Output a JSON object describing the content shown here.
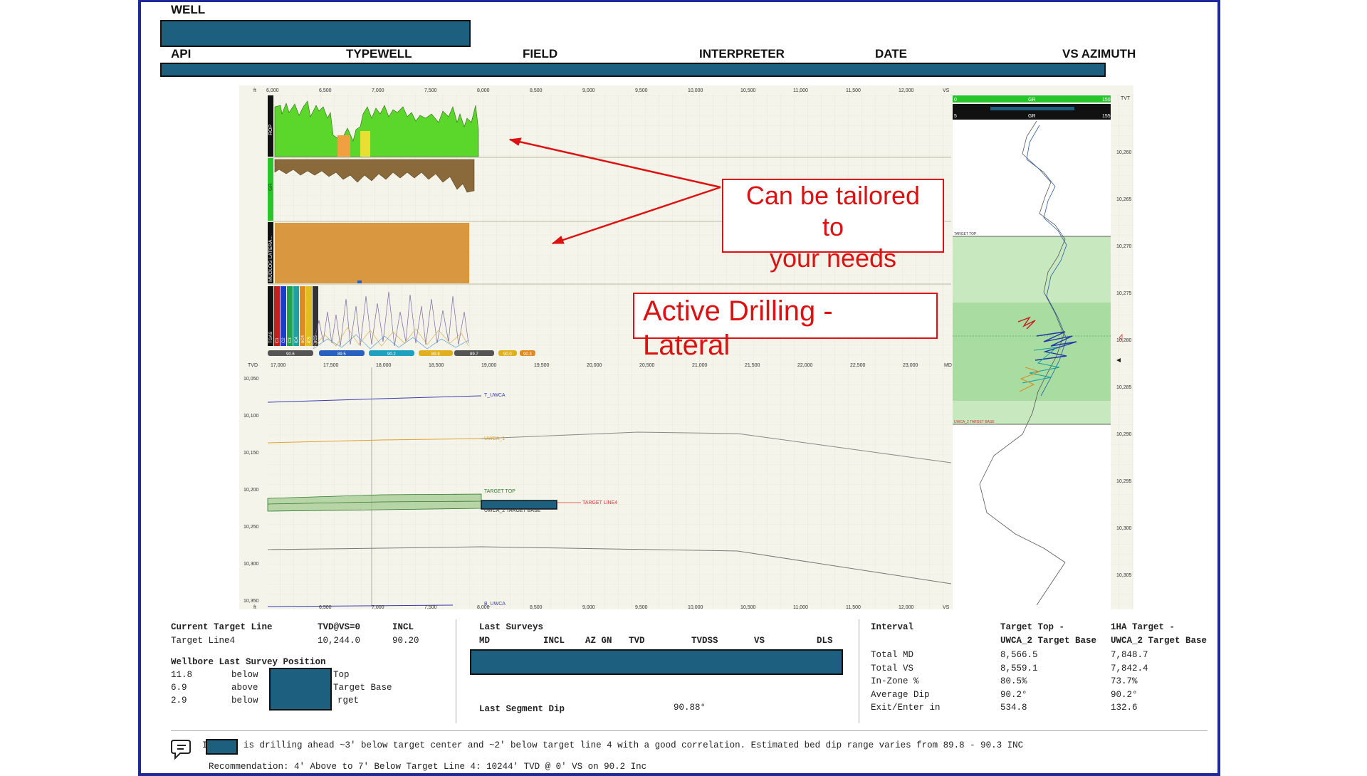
{
  "header": {
    "labels": [
      "WELL",
      "API",
      "TYPEWELL",
      "FIELD",
      "INTERPRETER",
      "DATE",
      "VS AZIMUTH"
    ]
  },
  "plot": {
    "unit_left": "ft",
    "unit_right": "VS",
    "md_unit": "MD",
    "tvd_unit": "TVD",
    "tvt_unit": "TVT",
    "top_ticks": [
      "6,000",
      "6,500",
      "7,000",
      "7,500",
      "8,000",
      "8,500",
      "9,000",
      "9,500",
      "10,000",
      "10,500",
      "11,000",
      "11,500",
      "12,000"
    ],
    "md_ticks": [
      "17,000",
      "17,500",
      "18,000",
      "18,500",
      "19,000",
      "19,500",
      "20,000",
      "20,500",
      "21,000",
      "21,500",
      "22,000",
      "22,500",
      "23,000"
    ],
    "bottom_ticks": [
      "6,500",
      "7,000",
      "7,500",
      "8,000",
      "8,500",
      "9,000",
      "9,500",
      "10,000",
      "10,500",
      "11,000",
      "11,500",
      "12,000"
    ],
    "tvd_ticks": [
      "10,050",
      "10,100",
      "10,150",
      "10,200",
      "10,250",
      "10,300",
      "10,350"
    ],
    "tvt_ticks": [
      "10,260",
      "10,265",
      "10,270",
      "10,275",
      "10,280",
      "10,285",
      "10,290",
      "10,295",
      "10,300",
      "10,305"
    ],
    "track_labels": [
      "ROP",
      "GR",
      "MUDLOG LATERA..."
    ],
    "gas_labels": [
      "TGAS",
      "C1",
      "C2",
      "C3",
      "iC4",
      "nC4",
      "iC5",
      "nC5"
    ],
    "inc_badges": [
      "90.6",
      "89.5",
      "90.2",
      "89.8",
      "89.7",
      "90.0",
      "90.3"
    ],
    "horizon_labels": [
      "T_UWCA",
      "UWCA_1",
      "TARGET TOP",
      "UWCA_2 TARGET BASE",
      "TARGET LINE4",
      "B_UWCA"
    ],
    "gr_header": [
      "GR",
      "GR"
    ],
    "gr_scale": [
      "0",
      "150",
      "5",
      "155"
    ],
    "type_labels": [
      "TARGET TOP",
      "UWCA_2 TARGET BASE"
    ]
  },
  "callouts": {
    "tailored": [
      "Can be tailored",
      "to",
      "your needs"
    ],
    "active": [
      "Active Drilling -",
      "Lateral"
    ]
  },
  "target": {
    "title": "Current Target Line",
    "tvd_header": "TVD@VS=0",
    "incl_header": "INCL",
    "name": "Target Line4",
    "tvd": "10,244.0",
    "incl": "90.20"
  },
  "position": {
    "title": "Wellbore Last Survey Position",
    "rows": [
      {
        "value": "11.8",
        "rel": "below",
        "ref": "Top"
      },
      {
        "value": "6.9",
        "rel": "above",
        "ref": "Target Base"
      },
      {
        "value": "2.9",
        "rel": "below",
        "ref": "rget"
      }
    ]
  },
  "surveys": {
    "title": "Last Surveys",
    "columns": [
      "MD",
      "INCL",
      "AZ GN",
      "TVD",
      "TVDSS",
      "VS",
      "DLS"
    ],
    "seg_label": "Last Segment Dip",
    "seg_value": "90.88°"
  },
  "interval": {
    "title": "Interval",
    "col1": [
      "Target Top -",
      "UWCA_2 Target Base"
    ],
    "col2": [
      "1HA Target -",
      "UWCA_2 Target Base"
    ],
    "rows": [
      {
        "label": "Total MD",
        "v1": "8,566.5",
        "v2": "7,848.7"
      },
      {
        "label": "Total VS",
        "v1": "8,559.1",
        "v2": "7,842.4"
      },
      {
        "label": "In-Zone %",
        "v1": "80.5%",
        "v2": "73.7%"
      },
      {
        "label": "Average Dip",
        "v1": "90.2°",
        "v2": "90.2°"
      },
      {
        "label": "Exit/Enter in",
        "v1": "534.8",
        "v2": "132.6"
      }
    ]
  },
  "comment": {
    "prefix": "I",
    "text": "is drilling ahead ~3' below target center and ~2' below target line 4 with a good correlation. Estimated bed dip range varies from 89.8 - 90.3 INC",
    "recommendation": "Recommendation: 4' Above to 7' Below Target Line 4: 10244' TVD @ 0' VS on 90.2 Inc"
  },
  "colors": {
    "frame": "#1f2a9a",
    "redaction": "#1c5f7e",
    "rop": "#5bd62a",
    "gr_fill": "#8a6a3a",
    "mudlog": "#d9973f",
    "callout": "#dd1111"
  }
}
